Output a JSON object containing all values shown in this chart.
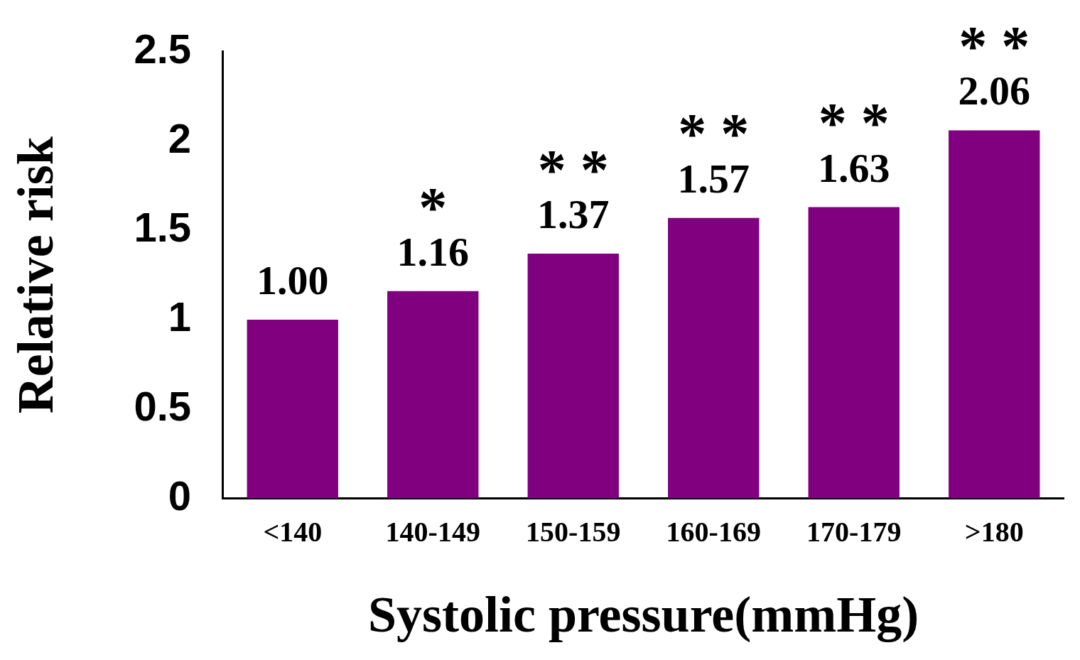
{
  "chart_data": {
    "type": "bar",
    "xlabel": "Systolic pressure(mmHg)",
    "ylabel": "Relative risk",
    "categories": [
      "<140",
      "140-149",
      "150-159",
      "160-169",
      "170-179",
      ">180"
    ],
    "values": [
      1.0,
      1.16,
      1.37,
      1.57,
      1.63,
      2.06
    ],
    "value_labels": [
      "1.00",
      "1.16",
      "1.37",
      "1.57",
      "1.63",
      "2.06"
    ],
    "color": "#800080",
    "ylim": [
      0,
      2.5
    ],
    "yticks": [
      0,
      0.5,
      1,
      1.5,
      2,
      2.5
    ],
    "grid": false,
    "legend": false,
    "annotations": [
      {
        "text": "*",
        "x": "140-149",
        "y": 1.16
      },
      {
        "text": "* *",
        "x": "150-159",
        "y": 1.37
      },
      {
        "text": "* *",
        "x": "160-169",
        "y": 1.57
      },
      {
        "text": "* *",
        "x": "170-179",
        "y": 1.63
      },
      {
        "text": "* *",
        "x": ">180",
        "y": 2.06
      }
    ]
  }
}
